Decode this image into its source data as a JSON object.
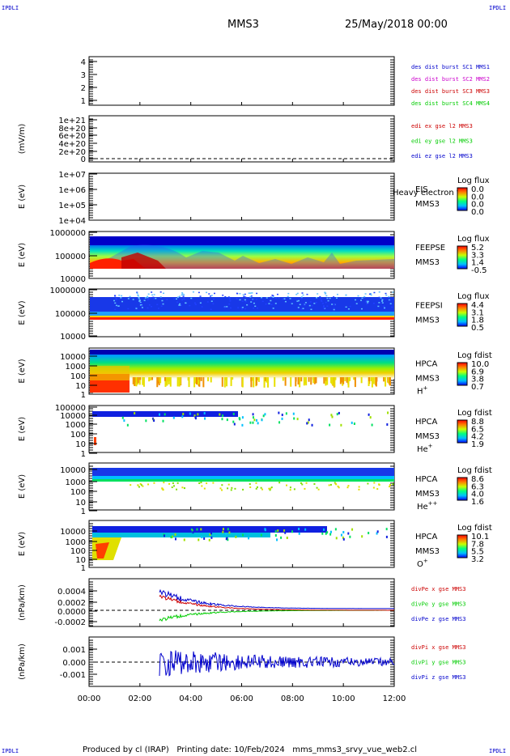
{
  "header": {
    "corner_label": "IPDLI",
    "title": "MMS3",
    "date": "25/May/2018 00:00"
  },
  "footer": {
    "text": "Produced by cl (IRAP)   Printing date: 10/Feb/2024   mms_mms3_srvy_vue_web2.cl"
  },
  "colors": {
    "blue": "#0000cc",
    "magenta": "#cc00cc",
    "red": "#cc0000",
    "green": "#00cc00",
    "frame": "#000000"
  },
  "chart_data": [
    {
      "type": "line",
      "panel": "des-dist",
      "ylim": [
        0.5,
        4.5
      ],
      "yticks": [
        "4",
        "3",
        "2",
        "1"
      ],
      "legend": [
        {
          "text": "des dist burst SC1 MMS1",
          "color": "#0000cc"
        },
        {
          "text": "des dist burst SC2 MMS2",
          "color": "#cc00cc"
        },
        {
          "text": "des dist burst SC3 MMS3",
          "color": "#cc0000"
        },
        {
          "text": "des dist burst SC4 MMS4",
          "color": "#00cc00"
        }
      ]
    },
    {
      "type": "line",
      "panel": "edi",
      "ylabel": "(mV/m)",
      "yticks": [
        "1e+21",
        "8e+20",
        "6e+20",
        "4e+20",
        "2e+20",
        "0"
      ],
      "legend": [
        {
          "text": "edi ex gse l2 MMS3",
          "color": "#cc0000"
        },
        {
          "text": "edi ey gse l2 MMS3",
          "color": "#00cc00"
        },
        {
          "text": "edi ez gse l2 MMS3",
          "color": "#0000cc"
        }
      ]
    },
    {
      "type": "heatmap",
      "panel": "eis",
      "ylabel": "E (eV)",
      "yticks": [
        "1e+07",
        "1e+06",
        "1e+05",
        "1e+04"
      ],
      "instrument": [
        "EIS",
        "MMS3"
      ],
      "overlay_text": "Heavy electron to",
      "colorbar": {
        "title": "Log flux",
        "ticks": [
          "0.0",
          "0.0",
          "0.0",
          "0.0"
        ]
      }
    },
    {
      "type": "heatmap",
      "panel": "feepse",
      "ylabel": "E (eV)",
      "yticks": [
        "1000000",
        "100000",
        "10000"
      ],
      "instrument": [
        "FEEPSE",
        "MMS3"
      ],
      "colorbar": {
        "title": "Log flux",
        "ticks": [
          "5.2",
          "3.3",
          "1.4",
          "-0.5"
        ]
      }
    },
    {
      "type": "heatmap",
      "panel": "feepsi",
      "ylabel": "E (eV)",
      "yticks": [
        "1000000",
        "100000",
        "10000"
      ],
      "instrument": [
        "FEEPSI",
        "MMS3"
      ],
      "colorbar": {
        "title": "Log flux",
        "ticks": [
          "4.4",
          "3.1",
          "1.8",
          "0.5"
        ]
      }
    },
    {
      "type": "heatmap",
      "panel": "hpca-h",
      "ylabel": "E (eV)",
      "yticks": [
        "10000",
        "1000",
        "100",
        "10",
        "1"
      ],
      "instrument": [
        "HPCA",
        "MMS3"
      ],
      "species": "H",
      "species_sup": "+",
      "colorbar": {
        "title": "Log fdist",
        "ticks": [
          "10.0",
          "6.9",
          "3.8",
          "0.7"
        ]
      }
    },
    {
      "type": "heatmap",
      "panel": "hpca-he",
      "ylabel": "E (eV)",
      "yticks": [
        "100000",
        "10000",
        "1000",
        "100",
        "10",
        "1"
      ],
      "instrument": [
        "HPCA",
        "MMS3"
      ],
      "species": "He",
      "species_sup": "+",
      "colorbar": {
        "title": "Log fdist",
        "ticks": [
          "8.8",
          "6.5",
          "4.2",
          "1.9"
        ]
      }
    },
    {
      "type": "heatmap",
      "panel": "hpca-he2",
      "ylabel": "E (eV)",
      "yticks": [
        "10000",
        "1000",
        "100",
        "10",
        "1"
      ],
      "instrument": [
        "HPCA",
        "MMS3"
      ],
      "species": "He",
      "species_sup": "++",
      "colorbar": {
        "title": "Log fdist",
        "ticks": [
          "8.6",
          "6.3",
          "4.0",
          "1.6"
        ]
      }
    },
    {
      "type": "heatmap",
      "panel": "hpca-o",
      "ylabel": "E (eV)",
      "yticks": [
        "10000",
        "1000",
        "100",
        "10",
        "1"
      ],
      "instrument": [
        "HPCA",
        "MMS3"
      ],
      "species": "O",
      "species_sup": "+",
      "colorbar": {
        "title": "Log fdist",
        "ticks": [
          "10.1",
          "7.8",
          "5.5",
          "3.2"
        ]
      }
    },
    {
      "type": "line",
      "panel": "divpe",
      "ylabel": "(nPa/km)",
      "yticks": [
        "0.0004",
        "0.0002",
        "0.0000",
        "-0.0002"
      ],
      "legend": [
        {
          "text": "divPe x gse MMS3",
          "color": "#cc0000"
        },
        {
          "text": "divPe y gse MMS3",
          "color": "#00cc00"
        },
        {
          "text": "divPe z gse MMS3",
          "color": "#0000cc"
        }
      ]
    },
    {
      "type": "line",
      "panel": "divpi",
      "ylabel": "(nPa/km)",
      "yticks": [
        "0.001",
        "0.000",
        "-0.001"
      ],
      "legend": [
        {
          "text": "divPi x gse MMS3",
          "color": "#cc0000"
        },
        {
          "text": "divPi y gse MMS3",
          "color": "#00cc00"
        },
        {
          "text": "divPi z gse MMS3",
          "color": "#0000cc"
        }
      ]
    }
  ],
  "time_axis": [
    "00:00",
    "02:00",
    "04:00",
    "06:00",
    "08:00",
    "10:00",
    "12:00"
  ]
}
